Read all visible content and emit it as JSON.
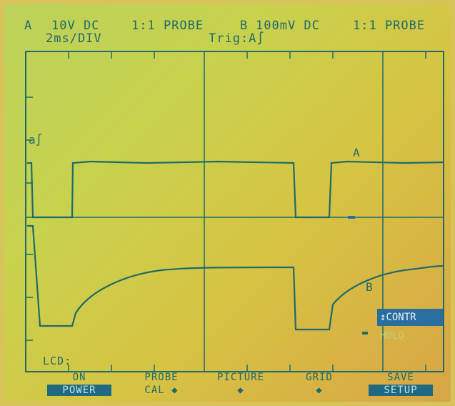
{
  "header": {
    "channel_a": "A",
    "a_volts": "10V DC",
    "a_probe": "1:1 PROBE",
    "channel_b": "B",
    "b_volts": "100mV DC",
    "b_probe": "1:1 PROBE",
    "timebase": "2ms/DIV",
    "trigger": "Trig:A∫"
  },
  "markers": {
    "trigger_marker": "a∫",
    "trace_a_label": "A",
    "trace_b_label": "B"
  },
  "side_menu": {
    "contrast": "↕CONTR",
    "hold": "HOLD"
  },
  "status": {
    "lcd_label": "LCD:"
  },
  "softkeys": [
    {
      "top": "ON",
      "bottom": "POWER",
      "inverted": true
    },
    {
      "top": "PROBE",
      "bottom": "CAL ◆",
      "inverted": false
    },
    {
      "top": "PICTURE",
      "bottom": "◆",
      "inverted": false
    },
    {
      "top": "GRID",
      "bottom": "◆",
      "inverted": false
    },
    {
      "top": "SAVE",
      "bottom": "SETUP",
      "inverted": true
    }
  ],
  "colors": {
    "trace": "#1f6a6a",
    "lcd_background": "#c7d24e",
    "menu_highlight": "#2a6ea0"
  }
}
